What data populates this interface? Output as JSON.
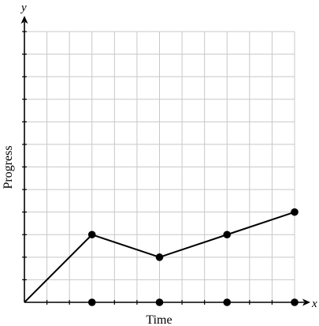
{
  "chart_data": {
    "type": "line",
    "title": "",
    "xlabel": "Time",
    "ylabel": "Progress",
    "x_axis_letter": "x",
    "y_axis_letter": "y",
    "grid": true,
    "xlim": [
      0,
      12
    ],
    "ylim": [
      0,
      12
    ],
    "x_ticks": [
      1,
      2,
      3,
      4,
      5,
      6,
      7,
      8,
      9,
      10,
      11,
      12
    ],
    "y_ticks": [
      1,
      2,
      3,
      4,
      5,
      6,
      7,
      8,
      9,
      10,
      11,
      12
    ],
    "series": [
      {
        "x": [
          0,
          3,
          6,
          9,
          12
        ],
        "y": [
          0,
          3,
          2,
          3,
          4
        ]
      }
    ],
    "x_axis_markers": [
      3,
      6,
      9,
      12
    ]
  }
}
